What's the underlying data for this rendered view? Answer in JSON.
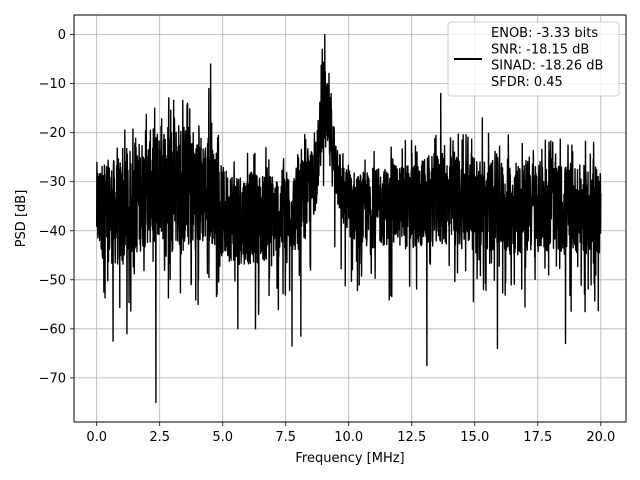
{
  "chart_data": {
    "type": "line",
    "xlabel": "Frequency [MHz]",
    "ylabel": "PSD [dB]",
    "xlim": [
      -0.9,
      21.0
    ],
    "ylim": [
      -79.0,
      4.0
    ],
    "xticks": [
      0.0,
      2.5,
      5.0,
      7.5,
      10.0,
      12.5,
      15.0,
      17.5,
      20.0
    ],
    "xtick_labels": [
      "0.0",
      "2.5",
      "5.0",
      "7.5",
      "10.0",
      "12.5",
      "15.0",
      "17.5",
      "20.0"
    ],
    "yticks": [
      0,
      -10,
      -20,
      -30,
      -40,
      -50,
      -60,
      -70
    ],
    "ytick_labels": [
      "0",
      "−10",
      "−20",
      "−30",
      "−40",
      "−50",
      "−60",
      "−70"
    ],
    "grid": true,
    "legend_position": "top-right",
    "series": [
      {
        "name": "ENOB: -3.33 bits\nSNR: -18.15 dB\nSINAD: -18.26 dB\nSFDR: 0.45",
        "legend_lines": [
          "ENOB: -3.33 bits",
          "SNR: -18.15 dB",
          "SINAD: -18.26 dB",
          "SFDR: 0.45"
        ],
        "color": "#000000",
        "x_range": [
          0.0,
          20.0
        ],
        "baseline_envelope": [
          {
            "x": 0.0,
            "upper": -26,
            "lower": -45
          },
          {
            "x": 1.0,
            "upper": -25,
            "lower": -48
          },
          {
            "x": 2.0,
            "upper": -20,
            "lower": -43
          },
          {
            "x": 2.5,
            "upper": -18,
            "lower": -42
          },
          {
            "x": 3.0,
            "upper": -17,
            "lower": -43
          },
          {
            "x": 4.0,
            "upper": -19,
            "lower": -44
          },
          {
            "x": 4.5,
            "upper": -22,
            "lower": -42
          },
          {
            "x": 5.0,
            "upper": -27,
            "lower": -46
          },
          {
            "x": 6.0,
            "upper": -28,
            "lower": -47
          },
          {
            "x": 7.0,
            "upper": -28,
            "lower": -46
          },
          {
            "x": 8.0,
            "upper": -27,
            "lower": -44
          },
          {
            "x": 8.7,
            "upper": -22,
            "lower": -36
          },
          {
            "x": 9.0,
            "upper": -5,
            "lower": -22
          },
          {
            "x": 9.3,
            "upper": -14,
            "lower": -30
          },
          {
            "x": 9.8,
            "upper": -27,
            "lower": -40
          },
          {
            "x": 10.5,
            "upper": -28,
            "lower": -44
          },
          {
            "x": 11.5,
            "upper": -27,
            "lower": -43
          },
          {
            "x": 12.5,
            "upper": -26,
            "lower": -44
          },
          {
            "x": 13.5,
            "upper": -24,
            "lower": -43
          },
          {
            "x": 15.0,
            "upper": -25,
            "lower": -44
          },
          {
            "x": 16.5,
            "upper": -25,
            "lower": -45
          },
          {
            "x": 18.0,
            "upper": -26,
            "lower": -44
          },
          {
            "x": 20.0,
            "upper": -27,
            "lower": -45
          }
        ],
        "notable_points": [
          {
            "x": 9.05,
            "y": 0.0
          },
          {
            "x": 8.95,
            "y": -3.0
          },
          {
            "x": 4.52,
            "y": -6.0
          },
          {
            "x": 4.45,
            "y": -11.0
          },
          {
            "x": 13.65,
            "y": -12.0
          },
          {
            "x": 3.6,
            "y": -14.0
          },
          {
            "x": 2.3,
            "y": -15.0
          },
          {
            "x": 15.3,
            "y": -17.0
          },
          {
            "x": 2.35,
            "y": -75.0
          },
          {
            "x": 13.1,
            "y": -67.5
          },
          {
            "x": 7.75,
            "y": -63.5
          },
          {
            "x": 0.65,
            "y": -62.5
          },
          {
            "x": 18.6,
            "y": -63.0
          },
          {
            "x": 15.9,
            "y": -64.0
          },
          {
            "x": 6.3,
            "y": -60.0
          },
          {
            "x": 1.2,
            "y": -61.0
          },
          {
            "x": 5.6,
            "y": -60.0
          },
          {
            "x": 8.1,
            "y": -61.5
          }
        ]
      }
    ]
  }
}
